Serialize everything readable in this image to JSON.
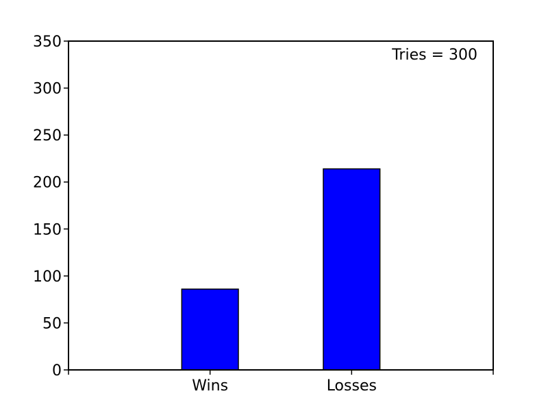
{
  "chart_data": {
    "type": "bar",
    "categories": [
      "Wins",
      "Losses"
    ],
    "values": [
      86,
      214
    ],
    "title": "",
    "xlabel": "",
    "ylabel": "",
    "ylim": [
      0,
      350
    ],
    "yticks": [
      0,
      50,
      100,
      150,
      200,
      250,
      300,
      350
    ],
    "xlim": [
      -1,
      2
    ],
    "annotation": "Tries = 300",
    "grid": false,
    "bar_color": "#0000ff",
    "edge_color": "#000000"
  }
}
